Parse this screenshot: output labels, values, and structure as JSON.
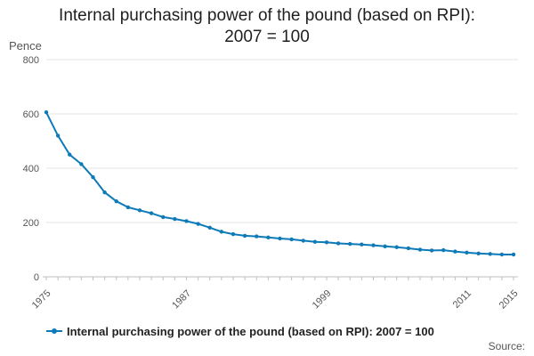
{
  "chart_data": {
    "type": "line",
    "title_lines": [
      "Internal purchasing power of the pound (based on RPI):",
      "2007 = 100"
    ],
    "ylabel": "Pence",
    "xlabel": "",
    "ylim": [
      0,
      800
    ],
    "yticks": [
      0,
      200,
      400,
      600,
      800
    ],
    "xticks": [
      "1975",
      "1987",
      "1999",
      "2011",
      "2015"
    ],
    "grid": true,
    "legend_position": "bottom",
    "source_label": "Source:",
    "color": "#0f7ab8",
    "series": [
      {
        "name": "Internal purchasing power of the pound (based on RPI): 2007 = 100",
        "x": [
          1975,
          1976,
          1977,
          1978,
          1979,
          1980,
          1981,
          1982,
          1983,
          1984,
          1985,
          1986,
          1987,
          1988,
          1989,
          1990,
          1991,
          1992,
          1993,
          1994,
          1995,
          1996,
          1997,
          1998,
          1999,
          2000,
          2001,
          2002,
          2003,
          2004,
          2005,
          2006,
          2007,
          2008,
          2009,
          2010,
          2011,
          2012,
          2013,
          2014,
          2015
        ],
        "values": [
          606,
          520,
          450,
          415,
          367,
          311,
          278,
          256,
          245,
          234,
          220,
          213,
          205,
          195,
          181,
          166,
          157,
          151,
          149,
          145,
          141,
          138,
          133,
          129,
          127,
          123,
          121,
          119,
          116,
          112,
          109,
          105,
          100,
          97,
          98,
          93,
          89,
          86,
          84,
          82,
          82
        ]
      }
    ]
  }
}
